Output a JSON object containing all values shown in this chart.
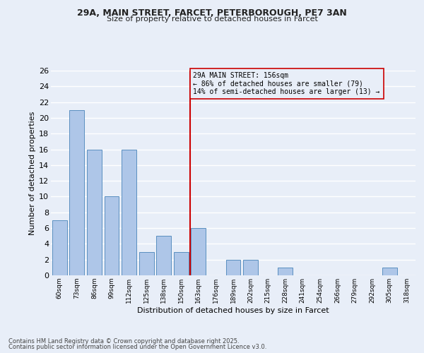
{
  "title1": "29A, MAIN STREET, FARCET, PETERBOROUGH, PE7 3AN",
  "title2": "Size of property relative to detached houses in Farcet",
  "xlabel": "Distribution of detached houses by size in Farcet",
  "ylabel": "Number of detached properties",
  "categories": [
    "60sqm",
    "73sqm",
    "86sqm",
    "99sqm",
    "112sqm",
    "125sqm",
    "138sqm",
    "150sqm",
    "163sqm",
    "176sqm",
    "189sqm",
    "202sqm",
    "215sqm",
    "228sqm",
    "241sqm",
    "254sqm",
    "266sqm",
    "279sqm",
    "292sqm",
    "305sqm",
    "318sqm"
  ],
  "values": [
    7,
    21,
    16,
    10,
    16,
    3,
    5,
    3,
    6,
    0,
    2,
    2,
    0,
    1,
    0,
    0,
    0,
    0,
    0,
    1,
    0
  ],
  "bar_color": "#aec6e8",
  "bar_edge_color": "#5a8fc0",
  "annotation_line_label": "29A MAIN STREET: 156sqm",
  "annotation_line1": "← 86% of detached houses are smaller (79)",
  "annotation_line2": "14% of semi-detached houses are larger (13) →",
  "line_color": "#cc0000",
  "box_edge_color": "#cc0000",
  "background_color": "#e8eef8",
  "grid_color": "#ffffff",
  "ylim": [
    0,
    26
  ],
  "yticks": [
    0,
    2,
    4,
    6,
    8,
    10,
    12,
    14,
    16,
    18,
    20,
    22,
    24,
    26
  ],
  "footer1": "Contains HM Land Registry data © Crown copyright and database right 2025.",
  "footer2": "Contains public sector information licensed under the Open Government Licence v3.0."
}
